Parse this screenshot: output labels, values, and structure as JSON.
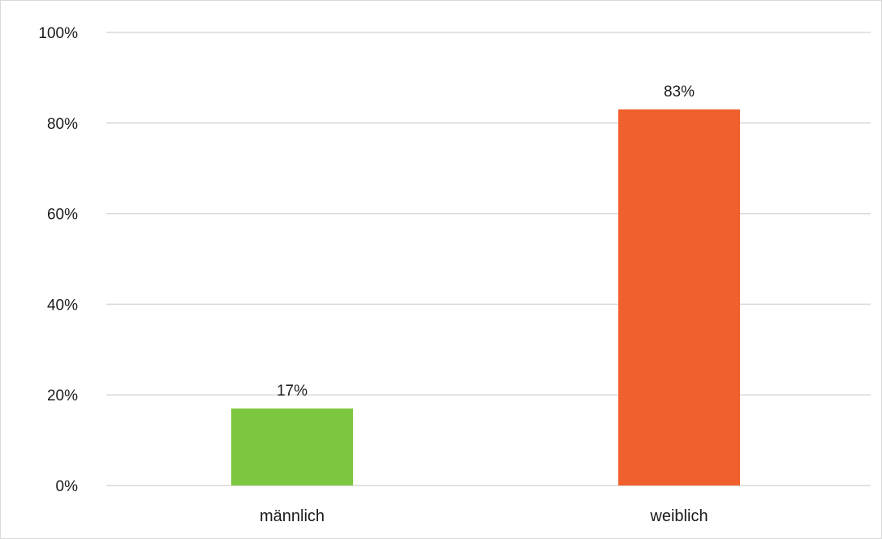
{
  "chart_data": {
    "type": "bar",
    "categories": [
      "männlich",
      "weiblich"
    ],
    "values": [
      17,
      83
    ],
    "data_labels": [
      "17%",
      "83%"
    ],
    "colors": [
      "#7dc63f",
      "#f0602c"
    ],
    "ylim": [
      0,
      100
    ],
    "yticks": [
      0,
      20,
      40,
      60,
      80,
      100
    ],
    "ytick_labels": [
      "0%",
      "20%",
      "40%",
      "60%",
      "80%",
      "100%"
    ],
    "grid": true,
    "gridline_color": "#d9d9d9",
    "title": "",
    "xlabel": "",
    "ylabel": ""
  }
}
